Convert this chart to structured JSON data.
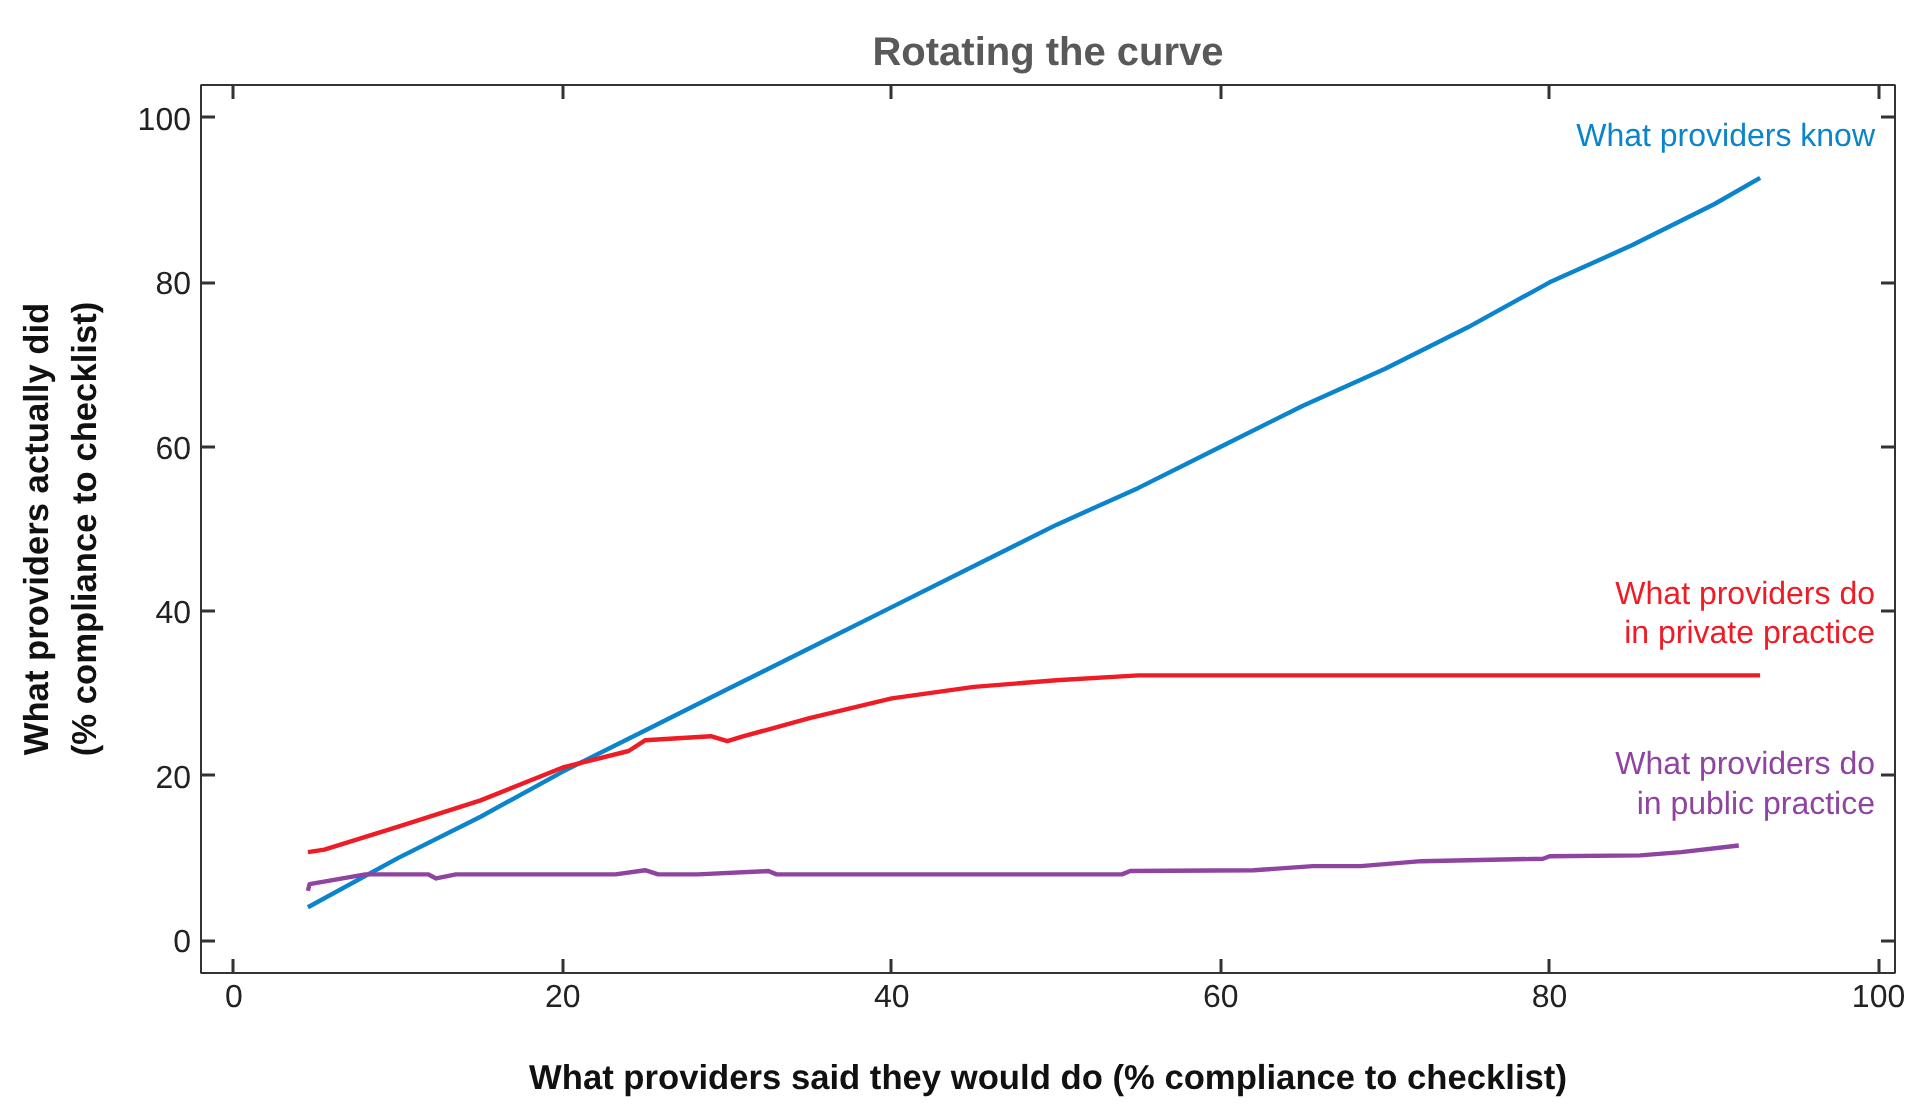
{
  "chart_data": {
    "type": "line",
    "title": "Rotating the curve",
    "xlabel": "What providers said they would do (% compliance to checklist)",
    "ylabel": "What providers actually did\n(% compliance to checklist)",
    "xlim": [
      -2,
      101
    ],
    "ylim": [
      -4,
      104
    ],
    "xticks": [
      0,
      20,
      40,
      60,
      80,
      100
    ],
    "yticks": [
      0,
      20,
      40,
      60,
      80,
      100
    ],
    "grid": false,
    "legend": false,
    "marker": "none",
    "line_style": "solid",
    "series": [
      {
        "name": "What providers know",
        "color": "#0a84cc",
        "x": [
          4.5,
          10,
          15,
          20,
          25,
          30,
          35,
          40,
          45,
          50,
          55,
          60,
          65,
          70,
          75,
          80,
          85,
          90,
          92.8
        ],
        "values": [
          4,
          10,
          15,
          20.5,
          25.5,
          30.5,
          35.5,
          40.5,
          45.5,
          50.5,
          55,
          60,
          65,
          69.5,
          74.5,
          80,
          84.5,
          89.5,
          92.7
        ]
      },
      {
        "name": "What providers do\nin private practice",
        "color": "#ee1c25",
        "x": [
          4.5,
          5.5,
          10,
          15,
          20,
          24,
          25,
          29,
          30,
          31,
          35,
          40,
          45,
          50,
          55,
          92.8
        ],
        "values": [
          10.7,
          11,
          13.8,
          17,
          21,
          23,
          24.3,
          24.8,
          24.2,
          24.8,
          27,
          29.4,
          30.8,
          31.6,
          32.2,
          32.2
        ]
      },
      {
        "name": "What providers do\nin public practice",
        "color": "#8e44a0",
        "x": [
          4.5,
          4.6,
          6,
          8,
          11.8,
          12.3,
          13.5,
          23.2,
          25,
          25.8,
          28.2,
          32.5,
          33,
          54,
          54.5,
          62,
          65.6,
          68.5,
          72.2,
          79.6,
          80,
          85.5,
          88,
          91.5
        ],
        "values": [
          6,
          6.8,
          7.3,
          8,
          8,
          7.5,
          8,
          8,
          8.5,
          8,
          8,
          8.4,
          8,
          8,
          8.4,
          8.5,
          9,
          9,
          9.6,
          9.9,
          10.2,
          10.3,
          10.7,
          11.5
        ]
      }
    ]
  }
}
